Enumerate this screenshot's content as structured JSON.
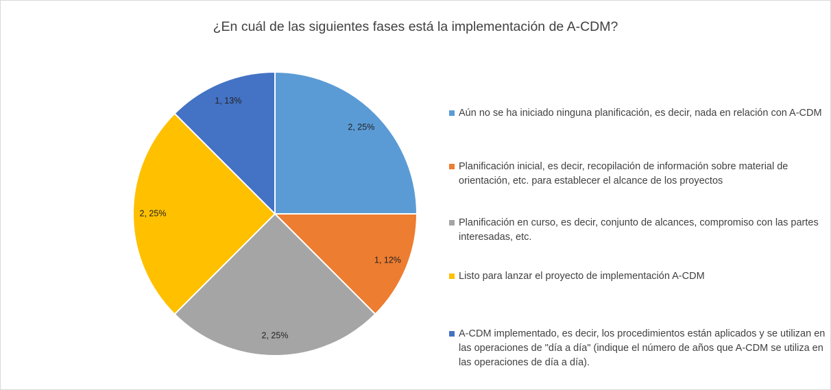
{
  "chart_data": {
    "type": "pie",
    "title": "¿En cuál de las siguientes fases está la implementación de A-CDM?",
    "categories": [
      "Aún no se ha iniciado ninguna planificación, es decir, nada en relación con A-CDM",
      "Planificación inicial, es decir, recopilación de información sobre material de orientación, etc. para establecer el alcance de los proyectos",
      "Planificación en curso, es decir, conjunto de alcances, compromiso con las partes interesadas, etc.",
      "Listo para lanzar el proyecto de implementación A-CDM",
      "A-CDM implementado, es decir, los procedimientos están aplicados y se utilizan en las operaciones de \"día a día\" (indique el número de años que A-CDM se utiliza en las operaciones de día a día)."
    ],
    "values": [
      2,
      1,
      2,
      2,
      1
    ],
    "value_labels": [
      "2, 25%",
      "1, 12%",
      "2, 25%",
      "2, 25%",
      "1, 13%"
    ],
    "colors": [
      "#5b9bd5",
      "#ed7d31",
      "#a5a5a5",
      "#ffc000",
      "#4472c4"
    ],
    "legend": "right"
  }
}
